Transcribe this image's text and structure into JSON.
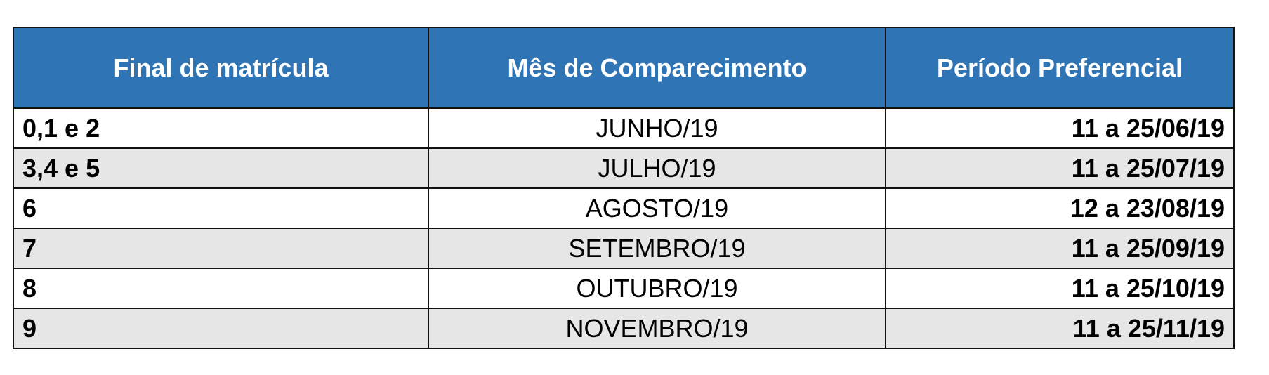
{
  "table": {
    "headers": [
      "Final de matrícula",
      "Mês de Comparecimento",
      "Período Preferencial"
    ],
    "rows": [
      [
        "0,1 e 2",
        "JUNHO/19",
        "11 a 25/06/19"
      ],
      [
        "3,4 e 5",
        "JULHO/19",
        "11 a 25/07/19"
      ],
      [
        "6",
        "AGOSTO/19",
        "12 a 23/08/19"
      ],
      [
        "7",
        "SETEMBRO/19",
        "11 a 25/09/19"
      ],
      [
        "8",
        "OUTUBRO/19",
        "11 a 25/10/19"
      ],
      [
        "9",
        "NOVEMBRO/19",
        "11 a 25/11/19"
      ]
    ]
  },
  "colors": {
    "header_bg": "#2f74b5",
    "alt_row_bg": "#e7e6e6"
  }
}
